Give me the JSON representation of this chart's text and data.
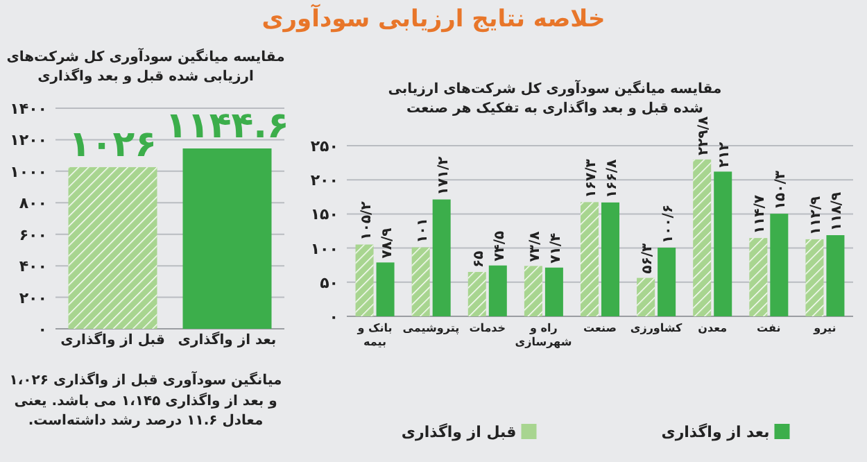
{
  "chart_data": [
    {
      "type": "bar",
      "title": "خلاصه نتایج ارزیابی سودآوری",
      "subtitle": "مقایسه میانگین سودآوری کل شرکت‌های ارزیابی شده قبل و بعد واگذاری",
      "categories": [
        "قبل از واگذاری",
        "بعد از واگذاری"
      ],
      "values": [
        1026,
        1144.6
      ],
      "colors": [
        "#a8d590",
        "#3cae4b"
      ],
      "value_labels": [
        "۱۰۲۶",
        "۱۱۴۴.۶"
      ],
      "ylim": [
        0,
        1400
      ],
      "yticks": [
        {
          "value": 0,
          "label": "۰"
        },
        {
          "value": 200,
          "label": "۲۰۰"
        },
        {
          "value": 400,
          "label": "۴۰۰"
        },
        {
          "value": 600,
          "label": "۶۰۰"
        },
        {
          "value": 800,
          "label": "۸۰۰"
        },
        {
          "value": 1000,
          "label": "۱۰۰۰"
        },
        {
          "value": 1200,
          "label": "۱۲۰۰"
        },
        {
          "value": 1400,
          "label": "۱۴۰۰"
        }
      ],
      "grid": "y",
      "annotations": [
        "میانگین سودآوری قبل از واگذاری ۱،۰۲۶ و بعد از واگذاری ۱،۱۴۵ می باشد. یعنی معادل ۱۱.۶ درصد رشد داشته‌است."
      ]
    },
    {
      "type": "bar",
      "title": "مقایسه میانگین سودآوری کل شرکت‌های ارزیابی شده قبل و بعد واگذاری به تفکیک هر صنعت",
      "categories": [
        "بانک و بیمه",
        "پتروشیمی",
        "خدمات",
        "راه و شهرسازی",
        "صنعت",
        "کشاورزی",
        "معدن",
        "نفت",
        "نیرو"
      ],
      "series": [
        {
          "name": "قبل از واگذاری",
          "color": "#a8d590",
          "values": [
            105.2,
            101,
            65,
            73.8,
            167.3,
            56.3,
            229.8,
            114.7,
            112.9
          ],
          "value_labels": [
            "۱۰۵/۲",
            "۱۰۱",
            "۶۵",
            "۷۳/۸",
            "۱۶۷/۳",
            "۵۶/۳",
            "۲۲۹/۸",
            "۱۱۴/۷",
            "۱۱۲/۹"
          ]
        },
        {
          "name": "بعد از واگذاری",
          "color": "#3cae4b",
          "values": [
            78.9,
            171.2,
            74.5,
            71.4,
            166.8,
            100.6,
            212,
            150.3,
            118.9
          ],
          "value_labels": [
            "۷۸/۹",
            "۱۷۱/۲",
            "۷۴/۵",
            "۷۱/۴",
            "۱۶۶/۸",
            "۱۰۰/۶",
            "۲۱۲",
            "۱۵۰/۳",
            "۱۱۸/۹"
          ]
        }
      ],
      "ylim": [
        0,
        250
      ],
      "yticks": [
        {
          "value": 0,
          "label": "۰"
        },
        {
          "value": 50,
          "label": "۵۰"
        },
        {
          "value": 100,
          "label": "۱۰۰"
        },
        {
          "value": 150,
          "label": "۱۵۰"
        },
        {
          "value": 200,
          "label": "۲۰۰"
        },
        {
          "value": 250,
          "label": "۲۵۰"
        }
      ],
      "grid": "y",
      "legend": "bottom"
    }
  ]
}
